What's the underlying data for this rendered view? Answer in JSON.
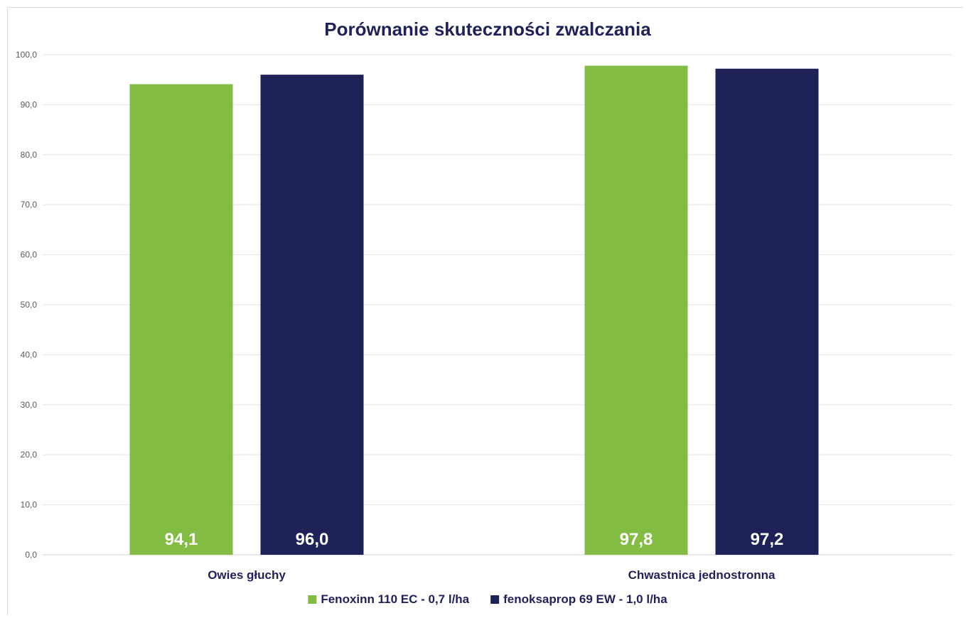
{
  "chart_data": {
    "type": "bar",
    "title": "Porównanie skuteczności zwalczania",
    "categories": [
      "Owies głuchy",
      "Chwastnica jednostronna"
    ],
    "series": [
      {
        "name": "Fenoxinn 110 EC  - 0,7 l/ha",
        "values": [
          94.1,
          97.8
        ],
        "labels": [
          "94,1",
          "97,8"
        ],
        "color": "#82bc43"
      },
      {
        "name": "fenoksaprop 69 EW - 1,0 l/ha",
        "values": [
          96.0,
          97.2
        ],
        "labels": [
          "96,0",
          "97,2"
        ],
        "color": "#1f2159"
      }
    ],
    "ylim": [
      0,
      100
    ],
    "yticks": [
      "0,0",
      "10,0",
      "20,0",
      "30,0",
      "40,0",
      "50,0",
      "60,0",
      "70,0",
      "80,0",
      "90,0",
      "100,0"
    ],
    "xlabel": "",
    "ylabel": "",
    "grid": true,
    "legend_position": "bottom"
  }
}
